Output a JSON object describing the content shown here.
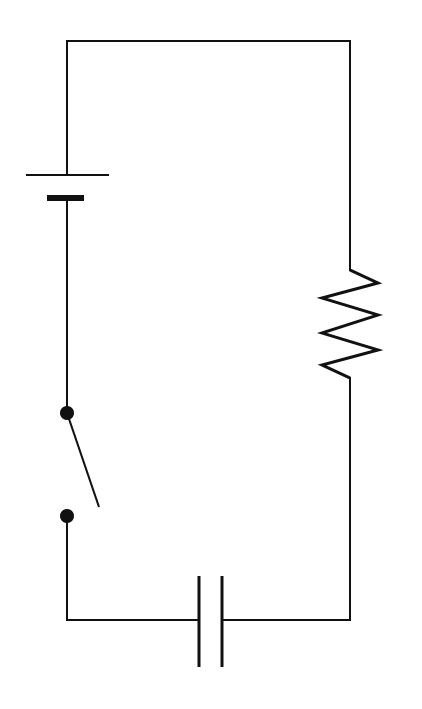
{
  "diagram": {
    "type": "circuit-schematic",
    "background_color": "#ffffff",
    "line_color": "#111111",
    "components": [
      {
        "id": "battery",
        "symbol": "battery-icon",
        "kind": "dc-cell"
      },
      {
        "id": "resistor",
        "symbol": "resistor-icon",
        "kind": "resistor"
      },
      {
        "id": "capacitor",
        "symbol": "capacitor-icon",
        "kind": "capacitor"
      },
      {
        "id": "switch",
        "symbol": "switch-icon",
        "kind": "single-pole-switch",
        "state": "open"
      }
    ],
    "connection": "series-loop"
  }
}
